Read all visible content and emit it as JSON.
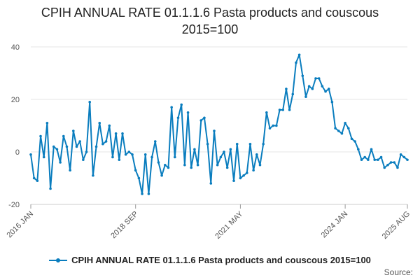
{
  "chart_data": {
    "type": "line",
    "title_line1": "CPIH ANNUAL RATE 01.1.1.6 Pasta products and couscous",
    "title_line2": "2015=100",
    "xlabel": "",
    "ylabel": "",
    "ylim": [
      -20,
      40
    ],
    "y_ticks": [
      "40",
      "20",
      "0",
      "-20"
    ],
    "x_tick_labels": [
      "2016 JAN",
      "2018 SEP",
      "2021 MAY",
      "2024 JAN",
      "2025 AUG"
    ],
    "x_tick_indices": [
      0,
      32,
      64,
      96,
      115
    ],
    "grid": true,
    "series": [
      {
        "name": "CPIH ANNUAL RATE 01.1.1.6 Pasta products and couscous 2015=100",
        "color": "#0a7dbe",
        "values": [
          -1,
          -10,
          -11,
          6,
          -2,
          11,
          -14,
          2,
          1,
          -4,
          6,
          2,
          -7,
          8,
          2,
          4,
          -3,
          0,
          19,
          -9,
          2,
          11,
          3,
          4,
          10,
          -2,
          7,
          -3,
          7,
          -1,
          0,
          -1,
          -7,
          -10,
          -16,
          -1,
          -16,
          -2,
          4,
          -4,
          -9,
          -5,
          -6,
          17,
          -2,
          13,
          18,
          -5,
          15,
          -6,
          1,
          -5,
          12,
          13,
          3,
          -12,
          8,
          -5,
          -2,
          0,
          -6,
          1,
          -11,
          3,
          -10,
          -9,
          -8,
          3,
          -7,
          -1,
          -5,
          3,
          15,
          9,
          10,
          10,
          16,
          16,
          24,
          16,
          22,
          34,
          37,
          29,
          21,
          25,
          24,
          28,
          28,
          25,
          23,
          24,
          19,
          9,
          8,
          7,
          11,
          9,
          5,
          4,
          1,
          -3,
          -2,
          -3,
          1,
          -3,
          -3,
          -2,
          -6,
          -5,
          -4,
          -4,
          -6,
          -1,
          -2,
          -3
        ]
      }
    ]
  },
  "legend": {
    "label": "CPIH ANNUAL RATE 01.1.1.6 Pasta products and couscous 2015=100"
  },
  "source": {
    "label": "Source:"
  }
}
